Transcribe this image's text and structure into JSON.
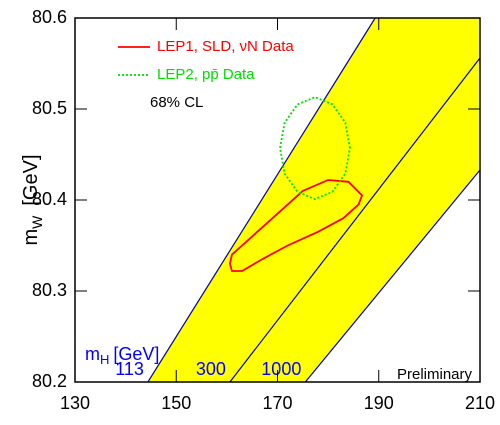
{
  "chart_data": {
    "type": "line",
    "xlim": [
      130,
      210
    ],
    "ylim": [
      80.2,
      80.6
    ],
    "xticks": [
      130,
      150,
      170,
      190,
      210
    ],
    "yticks": [
      80.2,
      80.3,
      80.4,
      80.5,
      80.6
    ],
    "y_label": {
      "symbol": "m",
      "subscript": "W",
      "unit": "[GeV]"
    },
    "series": [
      {
        "name": "LEP1, SLD, νN Data",
        "color": "#ff0000",
        "line_style": "solid",
        "x": [
          160.6,
          161,
          165,
          170,
          175,
          180,
          184,
          186.7,
          186,
          183,
          178,
          172,
          167,
          163,
          161
        ],
        "values": [
          80.33,
          80.34,
          80.36,
          80.385,
          80.41,
          80.422,
          80.42,
          80.405,
          80.395,
          80.38,
          80.365,
          80.35,
          80.335,
          80.322,
          80.322
        ]
      },
      {
        "name": "LEP2, pp̄ Data",
        "color": "#00dd00",
        "line_style": "dotted",
        "x": [
          184.3,
          183.4,
          180.85,
          177.4,
          173.95,
          171.4,
          170.5,
          171.4,
          173.95,
          177.4,
          180.85,
          183.4
        ],
        "values": [
          80.457,
          80.485,
          80.505,
          80.513,
          80.505,
          80.485,
          80.457,
          80.429,
          80.409,
          80.401,
          80.409,
          80.429
        ]
      }
    ],
    "confidence_level": "68% CL",
    "band": {
      "label": {
        "symbol": "m",
        "subscript": "H",
        "unit": "[GeV]"
      },
      "fill": "#ffff00",
      "line_color": "#0000aa",
      "label_color": "#0000ff",
      "lines": [
        {
          "label": "113",
          "x": [
            144.4,
            189.3
          ],
          "values": [
            80.2,
            80.6
          ]
        },
        {
          "label": "300",
          "x": [
            160.6,
            210
          ],
          "values": [
            80.2,
            80.556
          ]
        },
        {
          "label": "1000",
          "x": [
            175.5,
            210
          ],
          "values": [
            80.2,
            80.433
          ]
        }
      ]
    },
    "note": "Preliminary"
  }
}
